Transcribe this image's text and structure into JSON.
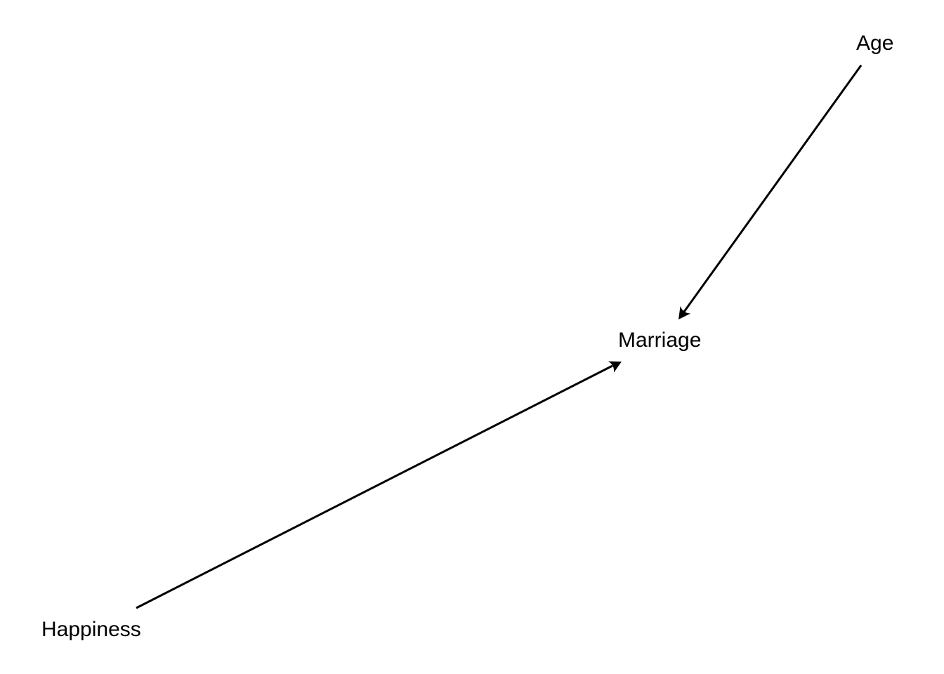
{
  "diagram": {
    "type": "directed-acyclic-graph",
    "nodes": {
      "age": {
        "label": "Age"
      },
      "marriage": {
        "label": "Marriage"
      },
      "happiness": {
        "label": "Happiness"
      }
    },
    "edges": [
      {
        "from": "Age",
        "to": "Marriage"
      },
      {
        "from": "Happiness",
        "to": "Marriage"
      }
    ],
    "colors": {
      "background": "#ffffff",
      "ink": "#000000"
    }
  }
}
